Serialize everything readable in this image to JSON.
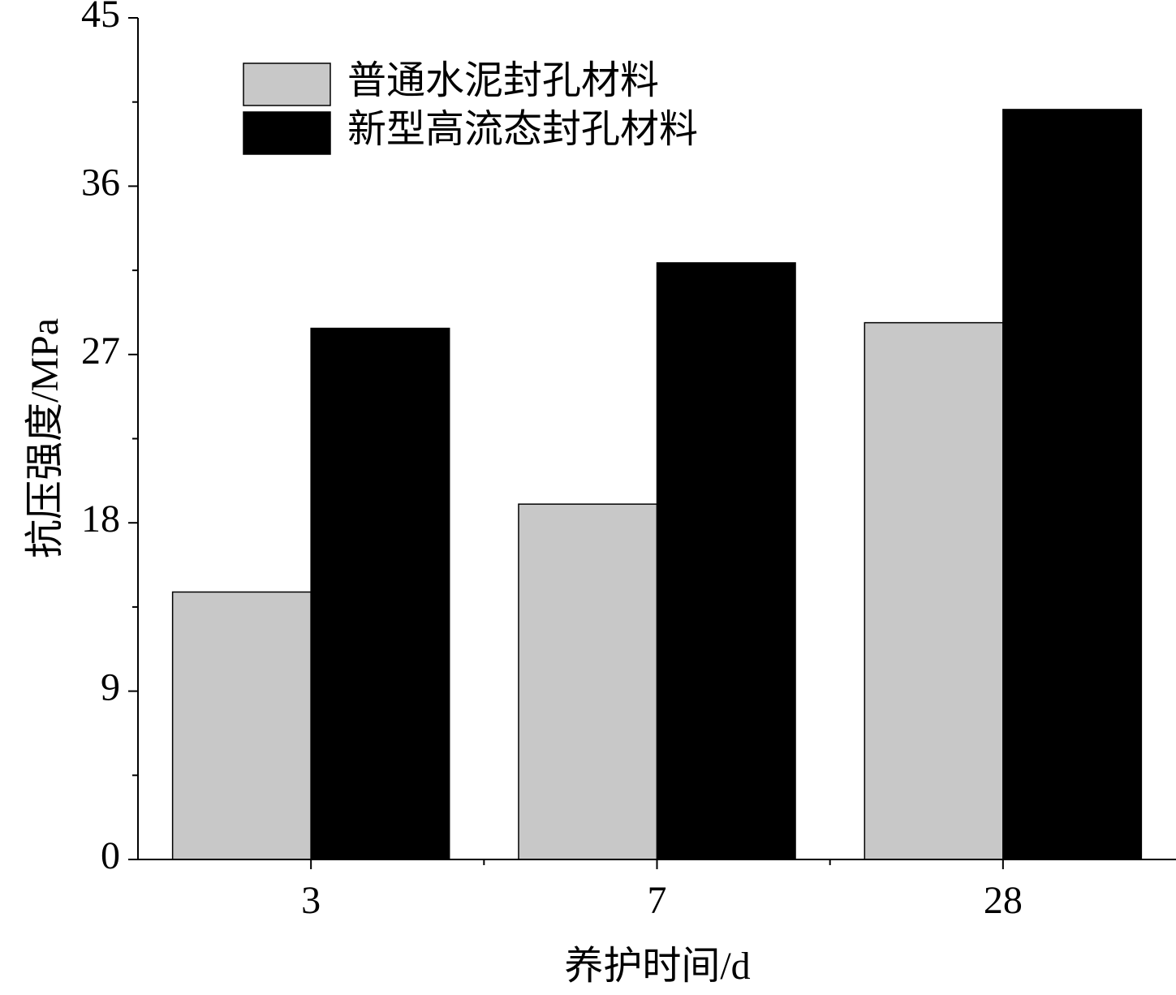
{
  "chart_data": {
    "type": "bar",
    "x_label": "养护时间/d",
    "y_label": "抗压强度/MPa",
    "categories": [
      "3",
      "7",
      "28"
    ],
    "series": [
      {
        "name": "普通水泥封孔材料",
        "color": "#c8c8c8",
        "values": [
          14.3,
          19.0,
          28.7
        ]
      },
      {
        "name": "新型高流态封孔材料",
        "color": "#000000",
        "values": [
          28.4,
          31.9,
          40.1
        ]
      }
    ],
    "ylim": [
      0,
      45
    ],
    "yticks": [
      0,
      9,
      18,
      27,
      36,
      45
    ]
  }
}
